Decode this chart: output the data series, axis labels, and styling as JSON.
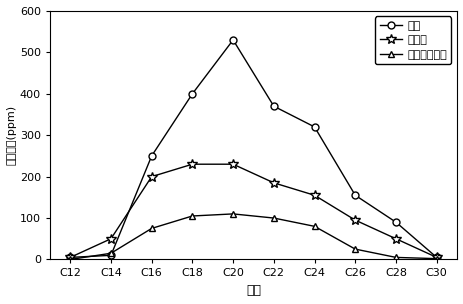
{
  "x_labels": [
    "C12",
    "C14",
    "C16",
    "C18",
    "C20",
    "C22",
    "C24",
    "C26",
    "C28",
    "C30"
  ],
  "x_values": [
    12,
    14,
    16,
    18,
    20,
    22,
    24,
    26,
    28,
    30
  ],
  "kongbai": [
    5,
    10,
    250,
    400,
    530,
    370,
    320,
    155,
    90,
    5
  ],
  "xiyoujun": [
    5,
    50,
    200,
    230,
    230,
    185,
    155,
    95,
    50,
    5
  ],
  "luwei": [
    0,
    15,
    75,
    105,
    110,
    100,
    80,
    25,
    5,
    2
  ],
  "color": "#000000",
  "legend_labels": [
    "空白",
    "嚏油菌",
    "芦苇和嚏油菌"
  ],
  "xlabel": "碳数",
  "ylabel": "烷烳含量(ppm)",
  "ylim": [
    0,
    600
  ],
  "yticks": [
    0,
    100,
    200,
    300,
    400,
    500,
    600
  ],
  "figsize": [
    4.64,
    3.04
  ],
  "dpi": 100
}
